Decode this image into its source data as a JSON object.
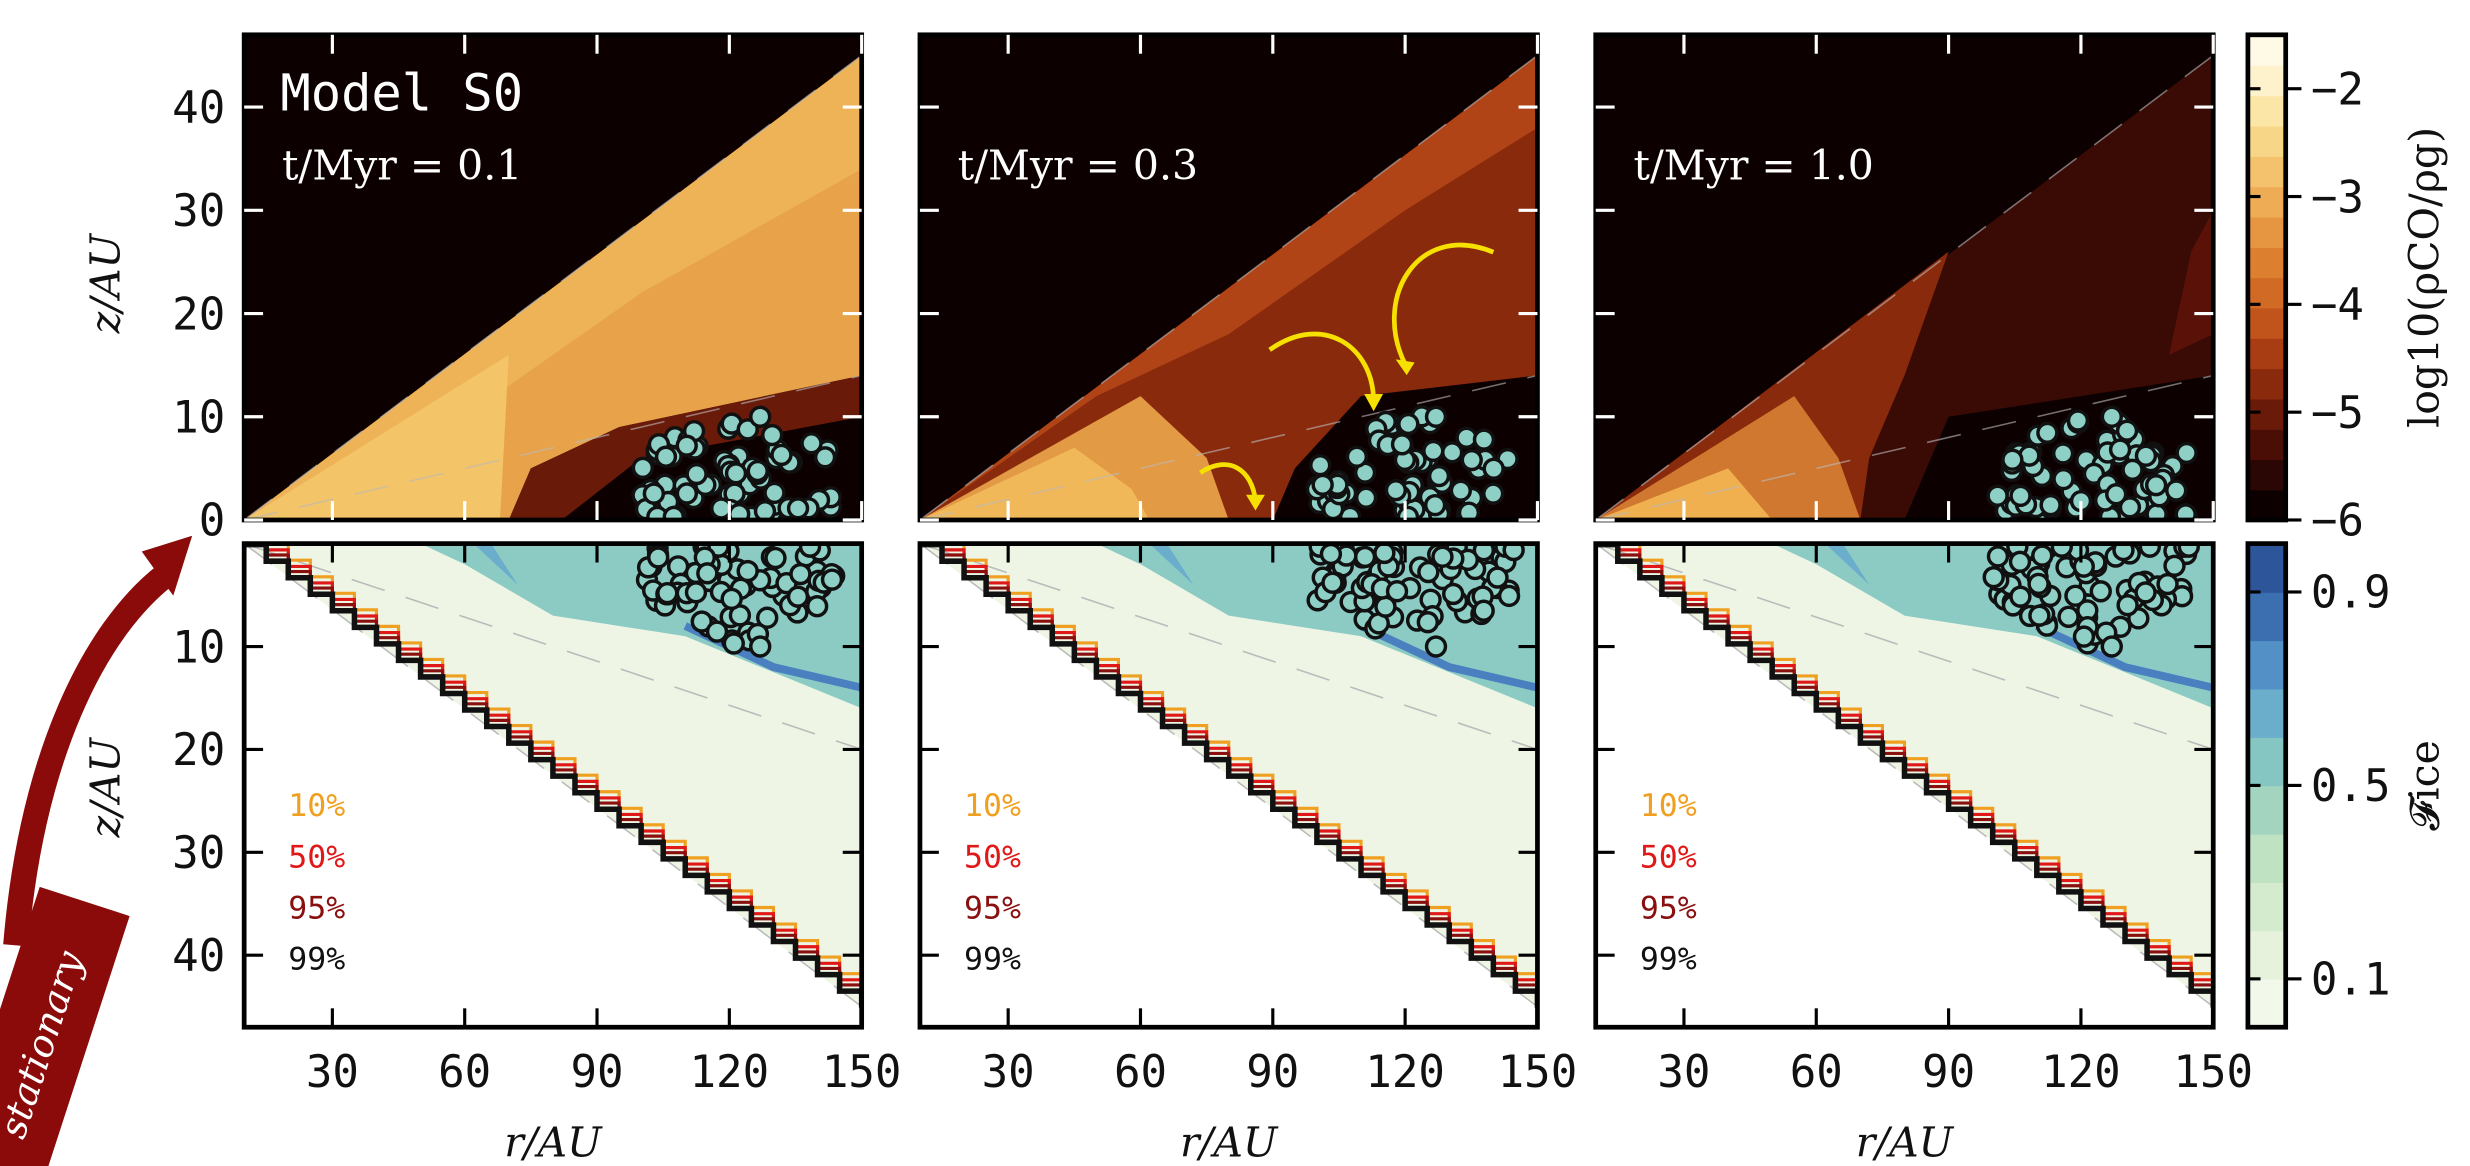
{
  "title": "Model S0",
  "time_labels": [
    "t/Myr = 0.1",
    "t/Myr = 0.3",
    "t/Myr = 1.0"
  ],
  "x_axis": {
    "xlabel": "r/AU",
    "xlim": [
      10,
      150
    ],
    "xticks": [
      30,
      60,
      90,
      120,
      150
    ]
  },
  "top_axis": {
    "ylabel": "z/AU",
    "ylim": [
      0,
      47
    ],
    "yticks": [
      0,
      10,
      20,
      30,
      40
    ]
  },
  "bottom_axis": {
    "ylabel": "z/AU",
    "ylim": [
      0,
      47
    ],
    "yticks": [
      10,
      20,
      30,
      40
    ]
  },
  "colorbar_top": {
    "label": "log10(ρCO/ρg)",
    "clim": [
      -6,
      -1.5
    ],
    "ticks": [
      {
        "value": -2,
        "label": "−2"
      },
      {
        "value": -3,
        "label": "−3"
      },
      {
        "value": -4,
        "label": "−4"
      },
      {
        "value": -5,
        "label": "−5"
      },
      {
        "value": -6,
        "label": "−6"
      }
    ],
    "colors": [
      "#0d0000",
      "#2a0604",
      "#4a0e06",
      "#6a1a08",
      "#8a2a0c",
      "#a83c12",
      "#c0541a",
      "#d06a24",
      "#dc8030",
      "#e69640",
      "#eeac54",
      "#f4c26c",
      "#f8d688",
      "#fbe6a8",
      "#fdf2cc",
      "#fffae6"
    ]
  },
  "colorbar_bottom": {
    "label": "𝓕ice",
    "clim": [
      0,
      1
    ],
    "ticks": [
      0.1,
      0.5,
      0.9
    ],
    "colors": [
      "#f3f9ea",
      "#e6f2dc",
      "#d4ebcd",
      "#bee2c2",
      "#a2d4c0",
      "#86c6c2",
      "#6aaecc",
      "#5290c6",
      "#3c6fb0",
      "#2d559a"
    ]
  },
  "legend": [
    {
      "label": "10%",
      "color": "#f0a020"
    },
    {
      "label": "50%",
      "color": "#e01818"
    },
    {
      "label": "95%",
      "color": "#8a1010"
    },
    {
      "label": "99%",
      "color": "#111111"
    }
  ],
  "arrow_text": "stationary"
}
